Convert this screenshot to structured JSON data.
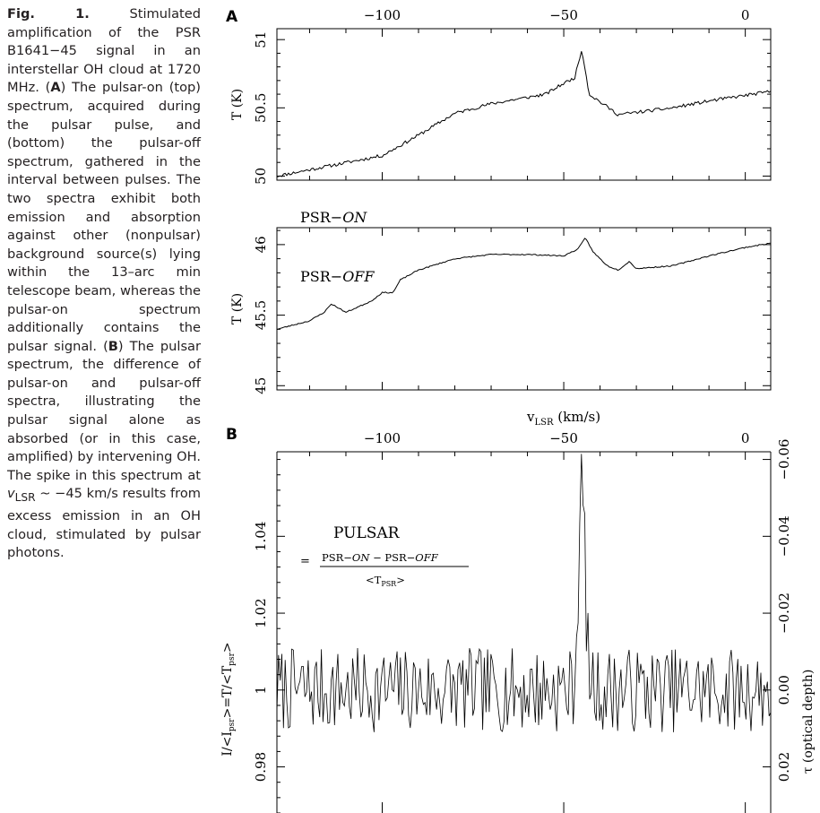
{
  "caption": {
    "fig_label": "Fig. 1.",
    "text_1": " Stimulated amplification of the PSR B1641−45 signal in an interstellar OH cloud at 1720 MHz. (",
    "label_a": "A",
    "text_2": ") The pulsar-on (top) spectrum, acquired during the pulsar pulse, and (bottom) the pulsar-off spectrum, gathered in the interval between pulses. The two spectra exhibit both emission and absorption against other (nonpulsar) background source(s) lying within the 13–arc min telescope beam, whereas the pulsar-on spectrum additionally contains the pulsar signal. (",
    "label_b": "B",
    "text_3": ") The pulsar spectrum, the difference of pulsar-on and pulsar-off spectra, illustrating the pulsar signal alone as absorbed (or in this case, amplified) by intervening OH. The spike in this spectrum at ",
    "v_sym": "v",
    "v_sub": "LSR",
    "text_4": " ~ −45 km/s results from excess emission in an OH cloud, stimulated by pulsar photons."
  },
  "panel_a": {
    "letter": "A",
    "xticks": [
      "−100",
      "−50",
      "0"
    ],
    "xlabel_main": "v",
    "xlabel_sub": "LSR",
    "xlabel_unit": " (km/s)"
  },
  "chart_data": [
    {
      "type": "line",
      "panel": "A (top)",
      "label_text": "PSR−",
      "label_italic": "ON",
      "ylabel": "T (K)",
      "x_range": [
        -129,
        7
      ],
      "ylim": [
        49.97,
        51.08
      ],
      "yticks": [
        "50",
        "50.5",
        "51"
      ],
      "shape": [
        [
          -129,
          50.0
        ],
        [
          -100,
          50.15
        ],
        [
          -90,
          50.3
        ],
        [
          -80,
          50.46
        ],
        [
          -70,
          50.53
        ],
        [
          -55,
          50.6
        ],
        [
          -50,
          50.68
        ],
        [
          -47,
          50.72
        ],
        [
          -45,
          50.93
        ],
        [
          -43,
          50.6
        ],
        [
          -35,
          50.45
        ],
        [
          -20,
          50.5
        ],
        [
          -10,
          50.55
        ],
        [
          7,
          50.62
        ]
      ],
      "noise": 0.012,
      "seed": 11
    },
    {
      "type": "line",
      "panel": "A (bottom)",
      "label_text": "PSR−",
      "label_italic": "OFF",
      "ylabel": "T (K)",
      "x_range": [
        -129,
        7
      ],
      "ylim": [
        44.97,
        46.12
      ],
      "yticks": [
        "45",
        "45.5",
        "46"
      ],
      "shape": [
        [
          -129,
          45.4
        ],
        [
          -120,
          45.46
        ],
        [
          -116,
          45.52
        ],
        [
          -114,
          45.58
        ],
        [
          -110,
          45.52
        ],
        [
          -103,
          45.6
        ],
        [
          -100,
          45.66
        ],
        [
          -97,
          45.66
        ],
        [
          -95,
          45.75
        ],
        [
          -90,
          45.82
        ],
        [
          -80,
          45.9
        ],
        [
          -70,
          45.93
        ],
        [
          -60,
          45.93
        ],
        [
          -50,
          45.92
        ],
        [
          -46,
          45.97
        ],
        [
          -44,
          46.05
        ],
        [
          -42,
          45.95
        ],
        [
          -38,
          45.85
        ],
        [
          -35,
          45.82
        ],
        [
          -32,
          45.88
        ],
        [
          -30,
          45.83
        ],
        [
          -20,
          45.85
        ],
        [
          -10,
          45.92
        ],
        [
          0,
          45.98
        ],
        [
          7,
          46.01
        ]
      ],
      "noise": 0.004,
      "seed": 23
    },
    {
      "type": "line",
      "panel": "B",
      "letter": "B",
      "title": "PULSAR",
      "formula_prefix": "=",
      "formula_num_a": "PSR−",
      "formula_num_a_it": "ON",
      "formula_minus": " − PSR−",
      "formula_num_b_it": "OFF",
      "formula_den_pre": "<T",
      "formula_den_sub": "PSR",
      "formula_den_post": ">",
      "ylabel_parts": [
        "I/<I",
        "psr",
        ">=T/<T",
        "psr",
        ">"
      ],
      "right_label": "τ (optical depth)",
      "x_range": [
        -129,
        7
      ],
      "xticks": [
        "−100",
        "−50",
        "0"
      ],
      "ylim": [
        0.968,
        1.062
      ],
      "yticks": [
        "0.98",
        "1",
        "1.02",
        "1.04"
      ],
      "right_ticks": [
        "0.02",
        "0.00",
        "−0.02",
        "−0.04",
        "−0.06"
      ],
      "peak": {
        "x": -45,
        "value": 1.053
      },
      "noise": 0.011,
      "seed": 7
    }
  ]
}
